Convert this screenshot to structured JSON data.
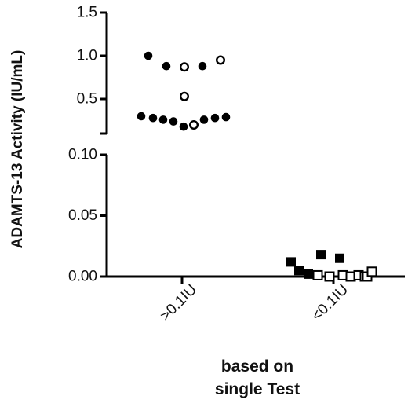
{
  "chart_data": {
    "type": "scatter",
    "ylabel": "ADAMTS-13 Activity (IU/mL)",
    "xlabel_lines": [
      "based on",
      "single Test"
    ],
    "categories": [
      ">0.1IU",
      "<0.1IU"
    ],
    "upper_segment": {
      "ylim": [
        0.1,
        1.5
      ],
      "ticks": [
        "0.5",
        "1.0",
        "1.5"
      ]
    },
    "lower_segment": {
      "ylim": [
        0,
        0.1
      ],
      "ticks": [
        "0.00",
        "0.05",
        "0.10"
      ]
    },
    "series": [
      {
        "category": ">0.1IU",
        "marker": "circle",
        "points": [
          {
            "y": 1.0,
            "filled": true
          },
          {
            "y": 0.88,
            "filled": true
          },
          {
            "y": 0.87,
            "filled": false
          },
          {
            "y": 0.88,
            "filled": true
          },
          {
            "y": 0.95,
            "filled": false
          },
          {
            "y": 0.53,
            "filled": false
          },
          {
            "y": 0.3,
            "filled": true
          },
          {
            "y": 0.28,
            "filled": true
          },
          {
            "y": 0.26,
            "filled": true
          },
          {
            "y": 0.24,
            "filled": true
          },
          {
            "y": 0.18,
            "filled": true
          },
          {
            "y": 0.2,
            "filled": false
          },
          {
            "y": 0.26,
            "filled": true
          },
          {
            "y": 0.28,
            "filled": true
          },
          {
            "y": 0.29,
            "filled": true
          }
        ]
      },
      {
        "category": "<0.1IU",
        "marker": "square",
        "points": [
          {
            "y": 0.012,
            "filled": true
          },
          {
            "y": 0.005,
            "filled": true
          },
          {
            "y": 0.002,
            "filled": true
          },
          {
            "y": 0.001,
            "filled": false
          },
          {
            "y": 0.018,
            "filled": true
          },
          {
            "y": 0.0,
            "filled": false
          },
          {
            "y": 0.015,
            "filled": true
          },
          {
            "y": 0.001,
            "filled": false
          },
          {
            "y": 0.0,
            "filled": false
          },
          {
            "y": 0.001,
            "filled": false
          },
          {
            "y": 0.0,
            "filled": false
          },
          {
            "y": 0.0,
            "filled": false
          },
          {
            "y": 0.004,
            "filled": false
          }
        ]
      }
    ]
  }
}
